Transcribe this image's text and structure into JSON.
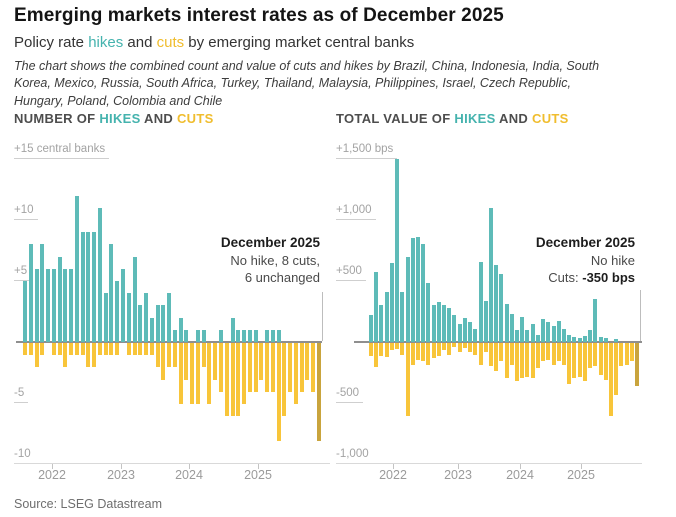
{
  "header": {
    "title": "Emerging markets interest rates as of December 2025",
    "subtitle": {
      "prefix": "Policy rate ",
      "hikes": "hikes",
      "mid": " and ",
      "cuts": "cuts",
      "suffix": " by emerging market central banks"
    },
    "description": "The chart shows the combined count and value of cuts and hikes by Brazil, China, Indonesia, India, South Korea, Mexico, Russia, South Africa, Turkey, Thailand, Malaysia, Philippines, Israel, Czech Republic, Hungary, Poland, Colombia and Chile"
  },
  "colors": {
    "hike": "#5ebbb8",
    "cut": "#f8c53a",
    "cut_current": "#c9a43d",
    "hike_text": "#45b3ae",
    "cut_text": "#f0bd2e"
  },
  "chart_data": [
    {
      "type": "bar",
      "header": {
        "prefix": "NUMBER OF ",
        "hikes": "HIKES",
        "and": " AND ",
        "cuts": "CUTS"
      },
      "unit": "central banks",
      "ylim": [
        -10,
        15
      ],
      "yticks": [
        {
          "value": 15,
          "label": "+15 central banks"
        },
        {
          "value": 10,
          "label": "+10"
        },
        {
          "value": 5,
          "label": "+5"
        },
        {
          "value": -5,
          "label": "-5"
        },
        {
          "value": -10,
          "label": "-10"
        }
      ],
      "xticks": [
        "2022",
        "2023",
        "2024",
        "2025"
      ],
      "months": [
        "2021-09",
        "2021-10",
        "2021-11",
        "2021-12",
        "2022-01",
        "2022-02",
        "2022-03",
        "2022-04",
        "2022-05",
        "2022-06",
        "2022-07",
        "2022-08",
        "2022-09",
        "2022-10",
        "2022-11",
        "2022-12",
        "2023-01",
        "2023-02",
        "2023-03",
        "2023-04",
        "2023-05",
        "2023-06",
        "2023-07",
        "2023-08",
        "2023-09",
        "2023-10",
        "2023-11",
        "2023-12",
        "2024-01",
        "2024-02",
        "2024-03",
        "2024-04",
        "2024-05",
        "2024-06",
        "2024-07",
        "2024-08",
        "2024-09",
        "2024-10",
        "2024-11",
        "2024-12",
        "2025-01",
        "2025-02",
        "2025-03",
        "2025-04",
        "2025-05",
        "2025-06",
        "2025-07",
        "2025-08",
        "2025-09",
        "2025-10",
        "2025-11",
        "2025-12"
      ],
      "series": [
        {
          "name": "hikes",
          "values": [
            5,
            8,
            6,
            8,
            6,
            6,
            7,
            6,
            6,
            12,
            9,
            9,
            9,
            11,
            4,
            8,
            5,
            6,
            4,
            7,
            3,
            4,
            2,
            3,
            3,
            4,
            1,
            2,
            1,
            0,
            1,
            1,
            0,
            0,
            1,
            0,
            2,
            1,
            1,
            1,
            1,
            0,
            1,
            1,
            1,
            0,
            0,
            0,
            0,
            0,
            0,
            0
          ]
        },
        {
          "name": "cuts",
          "values": [
            -1,
            -1,
            -2,
            -1,
            0,
            -1,
            -1,
            -2,
            -1,
            -1,
            -1,
            -2,
            -2,
            -1,
            -1,
            -1,
            -1,
            0,
            -1,
            -1,
            -1,
            -1,
            -1,
            -2,
            -3,
            -2,
            -2,
            -5,
            -3,
            -5,
            -5,
            -2,
            -5,
            -3,
            -4,
            -6,
            -6,
            -6,
            -5,
            -4,
            -4,
            -3,
            -4,
            -4,
            -8,
            -6,
            -4,
            -5,
            -4,
            -3,
            -4,
            -8
          ]
        }
      ],
      "annotation": {
        "title": "December 2025",
        "lines": [
          "No hike, 8 cuts,",
          "6 unchanged"
        ]
      }
    },
    {
      "type": "bar",
      "header": {
        "prefix": "TOTAL VALUE OF ",
        "hikes": "HIKES",
        "and": " AND ",
        "cuts": "CUTS"
      },
      "unit": "bps",
      "ylim": [
        -1000,
        1500
      ],
      "yticks": [
        {
          "value": 1500,
          "label": "+1,500 bps"
        },
        {
          "value": 1000,
          "label": "+1,000"
        },
        {
          "value": 500,
          "label": "+500"
        },
        {
          "value": -500,
          "label": "-500"
        },
        {
          "value": -1000,
          "label": "-1,000"
        }
      ],
      "xticks": [
        "2022",
        "2023",
        "2024",
        "2025"
      ],
      "months": [
        "2021-09",
        "2021-10",
        "2021-11",
        "2021-12",
        "2022-01",
        "2022-02",
        "2022-03",
        "2022-04",
        "2022-05",
        "2022-06",
        "2022-07",
        "2022-08",
        "2022-09",
        "2022-10",
        "2022-11",
        "2022-12",
        "2023-01",
        "2023-02",
        "2023-03",
        "2023-04",
        "2023-05",
        "2023-06",
        "2023-07",
        "2023-08",
        "2023-09",
        "2023-10",
        "2023-11",
        "2023-12",
        "2024-01",
        "2024-02",
        "2024-03",
        "2024-04",
        "2024-05",
        "2024-06",
        "2024-07",
        "2024-08",
        "2024-09",
        "2024-10",
        "2024-11",
        "2024-12",
        "2025-01",
        "2025-02",
        "2025-03",
        "2025-04",
        "2025-05",
        "2025-06",
        "2025-07",
        "2025-08",
        "2025-09",
        "2025-10",
        "2025-11",
        "2025-12"
      ],
      "series": [
        {
          "name": "hikes_bps",
          "values": [
            225,
            575,
            300,
            410,
            650,
            1500,
            410,
            700,
            850,
            860,
            800,
            480,
            300,
            330,
            300,
            280,
            220,
            150,
            200,
            160,
            110,
            655,
            340,
            1100,
            630,
            560,
            315,
            230,
            100,
            205,
            100,
            150,
            60,
            190,
            160,
            130,
            175,
            110,
            55,
            40,
            30,
            50,
            95,
            350,
            40,
            30,
            0,
            25,
            0,
            0,
            0,
            0
          ]
        },
        {
          "name": "cuts_bps",
          "values": [
            -110,
            -200,
            -110,
            -115,
            -60,
            -50,
            -100,
            -600,
            -180,
            -140,
            -150,
            -180,
            -125,
            -110,
            -55,
            -95,
            -30,
            -70,
            -40,
            -70,
            -95,
            -180,
            -70,
            -190,
            -230,
            -150,
            -290,
            -180,
            -315,
            -290,
            -275,
            -290,
            -205,
            -150,
            -140,
            -180,
            -150,
            -180,
            -340,
            -290,
            -275,
            -315,
            -205,
            -190,
            -260,
            -300,
            -600,
            -425,
            -190,
            -180,
            -150,
            -350
          ]
        }
      ],
      "annotation": {
        "title": "December 2025",
        "lines": [
          "No hike"
        ],
        "value_line": {
          "prefix": "Cuts: ",
          "value": "-350 bps"
        }
      }
    }
  ],
  "footer": {
    "source": "Source: LSEG Datastream"
  }
}
